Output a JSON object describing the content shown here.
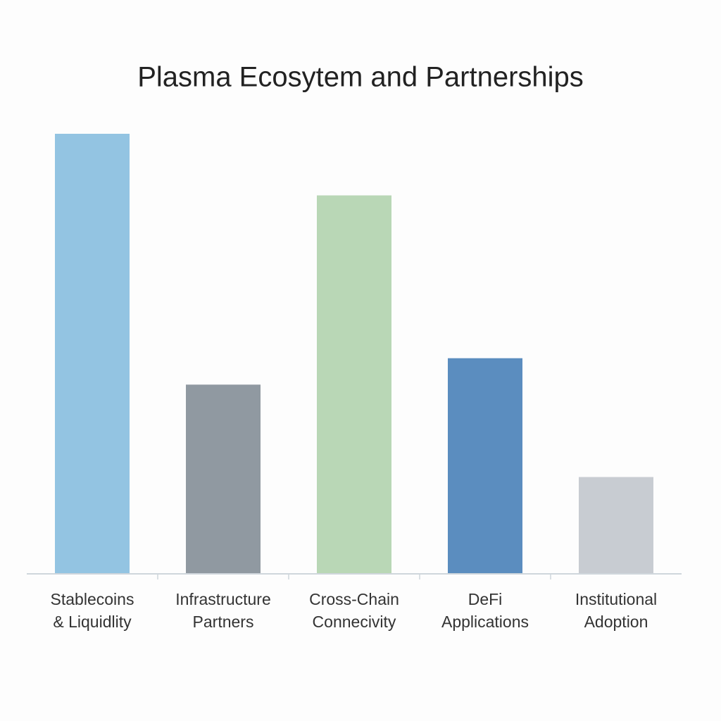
{
  "chart_data": {
    "type": "bar",
    "title": "Plasma Ecosytem and Partnerships",
    "categories": [
      [
        "Stablecoins",
        "& Liquidlity"
      ],
      [
        "Infrastructure",
        "Partners"
      ],
      [
        "Cross-Chain",
        "Connecivity"
      ],
      [
        "DeFi",
        "Applications"
      ],
      [
        "Institutional",
        "Adoption"
      ]
    ],
    "values": [
      100,
      43,
      86,
      49,
      22
    ],
    "colors": [
      "#93c4e2",
      "#9099a1",
      "#b9d7b6",
      "#5b8dbf",
      "#c8ccd2"
    ],
    "ylim": [
      0,
      100
    ],
    "grid": false
  }
}
